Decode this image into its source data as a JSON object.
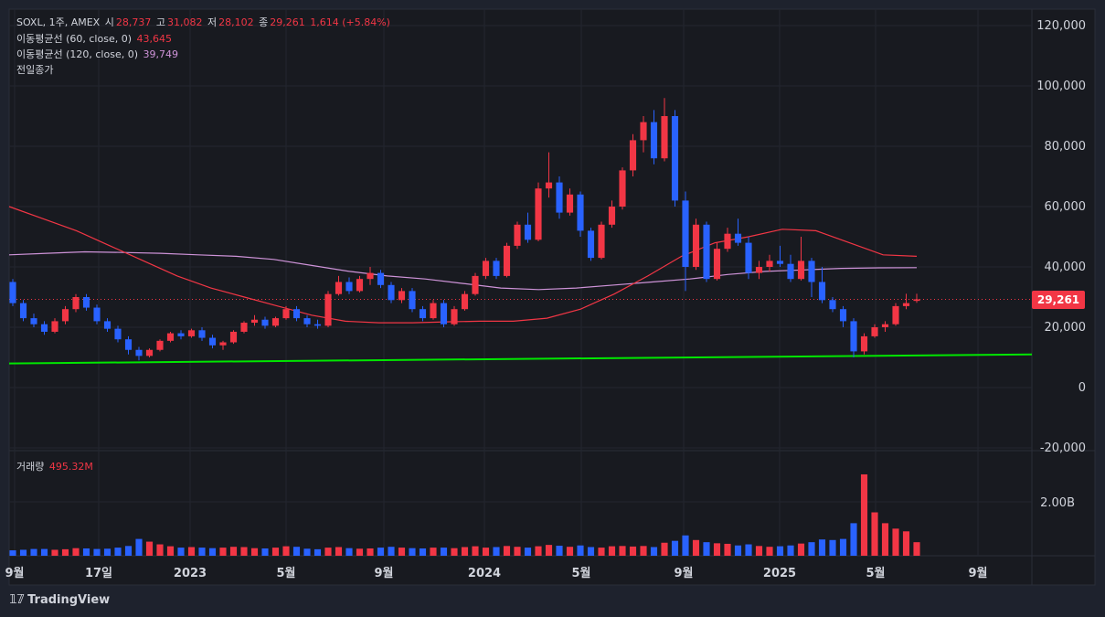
{
  "header": {
    "symbol": "SOXL, 1주, AMEX",
    "open_label": "시",
    "open": "28,737",
    "high_label": "고",
    "high": "31,082",
    "low_label": "저",
    "low": "28,102",
    "close_label": "종",
    "close": "29,261",
    "change": "1,614 (+5.84%)",
    "ma60_label": "이동평균선 (60, close, 0)",
    "ma60_value": "43,645",
    "ma120_label": "이동평균선 (120, close, 0)",
    "ma120_value": "39,749",
    "prev_close_label": "전일종가"
  },
  "volume_panel": {
    "label": "거래량",
    "value": "495.32M"
  },
  "price_badge": "29,261",
  "brand": "TradingView",
  "colors": {
    "up": "#f23645",
    "down": "#2962ff",
    "ma60": "#f23645",
    "ma120": "#ce93d8",
    "trendline": "#00e600",
    "background": "#1e222d"
  },
  "chart_data": {
    "type": "candlestick",
    "price_axis": {
      "ticks": [
        "120,000",
        "100,000",
        "80,000",
        "60,000",
        "40,000",
        "20,000",
        "0",
        "-20,000"
      ],
      "range": [
        -20000,
        120000
      ]
    },
    "volume_axis": {
      "ticks": [
        "2.00B"
      ]
    },
    "time_axis": {
      "ticks": [
        "9월",
        "17일",
        "2023",
        "5월",
        "9월",
        "2024",
        "5월",
        "9월",
        "2025",
        "5월",
        "9월"
      ]
    },
    "candles": [
      [
        35000,
        36000,
        27000,
        28000
      ],
      [
        28000,
        29000,
        22000,
        23000
      ],
      [
        23000,
        24500,
        20000,
        21000
      ],
      [
        21000,
        22000,
        17500,
        18500
      ],
      [
        18500,
        23000,
        18000,
        22000
      ],
      [
        22000,
        27000,
        21000,
        26000
      ],
      [
        26000,
        31000,
        25000,
        30000
      ],
      [
        30000,
        31000,
        25500,
        26500
      ],
      [
        26500,
        27500,
        21000,
        22000
      ],
      [
        22000,
        23000,
        18500,
        19500
      ],
      [
        19500,
        20500,
        15000,
        16000
      ],
      [
        16000,
        17000,
        11000,
        12500
      ],
      [
        12500,
        13500,
        9000,
        10500
      ],
      [
        10500,
        13000,
        10000,
        12500
      ],
      [
        12500,
        16000,
        12000,
        15500
      ],
      [
        15500,
        18500,
        15000,
        18000
      ],
      [
        18000,
        19000,
        16000,
        17000
      ],
      [
        17000,
        19500,
        16500,
        19000
      ],
      [
        19000,
        20000,
        15500,
        16500
      ],
      [
        16500,
        17500,
        13000,
        14000
      ],
      [
        14000,
        15500,
        12500,
        15000
      ],
      [
        15000,
        19000,
        14500,
        18500
      ],
      [
        18500,
        22000,
        18000,
        21500
      ],
      [
        21500,
        24000,
        20500,
        22500
      ],
      [
        22500,
        23500,
        19500,
        20500
      ],
      [
        20500,
        23500,
        20000,
        23000
      ],
      [
        23000,
        27000,
        22500,
        26000
      ],
      [
        26000,
        27000,
        22000,
        23000
      ],
      [
        23000,
        24000,
        20000,
        21000
      ],
      [
        21000,
        22500,
        19500,
        20500
      ],
      [
        20500,
        32000,
        20000,
        31000
      ],
      [
        31000,
        37000,
        30500,
        35000
      ],
      [
        35000,
        36500,
        31000,
        32000
      ],
      [
        32000,
        37000,
        31500,
        36000
      ],
      [
        36000,
        40000,
        34000,
        38000
      ],
      [
        38000,
        39000,
        33000,
        34000
      ],
      [
        34000,
        35000,
        28000,
        29000
      ],
      [
        29000,
        33000,
        28000,
        32000
      ],
      [
        32000,
        33000,
        25000,
        26000
      ],
      [
        26000,
        27000,
        22000,
        23000
      ],
      [
        23000,
        29000,
        22500,
        28000
      ],
      [
        28000,
        29000,
        20000,
        21000
      ],
      [
        21000,
        27000,
        20500,
        26000
      ],
      [
        26000,
        32000,
        25500,
        31000
      ],
      [
        31000,
        38000,
        30500,
        37000
      ],
      [
        37000,
        43000,
        36000,
        42000
      ],
      [
        42000,
        43000,
        36000,
        37000
      ],
      [
        37000,
        48000,
        36500,
        47000
      ],
      [
        47000,
        55000,
        46000,
        54000
      ],
      [
        54000,
        58000,
        48000,
        49000
      ],
      [
        49000,
        68000,
        48500,
        66000
      ],
      [
        66000,
        78000,
        63000,
        68000
      ],
      [
        68000,
        70000,
        56000,
        58000
      ],
      [
        58000,
        66000,
        57000,
        64000
      ],
      [
        64000,
        65000,
        50000,
        52000
      ],
      [
        52000,
        53000,
        42000,
        43000
      ],
      [
        43000,
        55000,
        42500,
        54000
      ],
      [
        54000,
        62000,
        53000,
        60000
      ],
      [
        60000,
        73000,
        59000,
        72000
      ],
      [
        72000,
        84000,
        70000,
        82000
      ],
      [
        82000,
        90000,
        78000,
        88000
      ],
      [
        88000,
        92000,
        74000,
        76000
      ],
      [
        76000,
        96000,
        75000,
        90000
      ],
      [
        90000,
        92000,
        60000,
        62000
      ],
      [
        62000,
        65000,
        32000,
        40000
      ],
      [
        40000,
        56000,
        39000,
        54000
      ],
      [
        54000,
        55000,
        35000,
        36000
      ],
      [
        36000,
        48000,
        35500,
        46000
      ],
      [
        46000,
        53000,
        45000,
        51000
      ],
      [
        51000,
        56000,
        47000,
        48000
      ],
      [
        48000,
        50000,
        36000,
        38000
      ],
      [
        38000,
        42000,
        36000,
        40000
      ],
      [
        40000,
        44000,
        38500,
        42000
      ],
      [
        42000,
        47000,
        40000,
        41000
      ],
      [
        41000,
        44000,
        35000,
        36000
      ],
      [
        36000,
        50000,
        35500,
        42000
      ],
      [
        42000,
        43000,
        30000,
        35000
      ],
      [
        35000,
        40000,
        28000,
        29000
      ],
      [
        29000,
        30000,
        25000,
        26000
      ],
      [
        26000,
        27000,
        20000,
        22000
      ],
      [
        22000,
        23000,
        10000,
        12000
      ],
      [
        12000,
        18000,
        11000,
        17000
      ],
      [
        17000,
        21000,
        16500,
        20000
      ],
      [
        20000,
        22000,
        18500,
        21000
      ],
      [
        21000,
        28000,
        20500,
        27000
      ],
      [
        27000,
        31082,
        26000,
        28000
      ],
      [
        28737,
        31082,
        28102,
        29261
      ]
    ],
    "volumes": [
      0.2,
      0.22,
      0.25,
      0.25,
      0.22,
      0.24,
      0.28,
      0.27,
      0.25,
      0.26,
      0.3,
      0.36,
      0.62,
      0.52,
      0.42,
      0.35,
      0.3,
      0.32,
      0.3,
      0.28,
      0.3,
      0.33,
      0.32,
      0.28,
      0.27,
      0.3,
      0.35,
      0.33,
      0.26,
      0.24,
      0.3,
      0.32,
      0.28,
      0.26,
      0.27,
      0.3,
      0.33,
      0.3,
      0.28,
      0.27,
      0.3,
      0.3,
      0.28,
      0.32,
      0.35,
      0.3,
      0.32,
      0.36,
      0.33,
      0.3,
      0.35,
      0.4,
      0.37,
      0.33,
      0.38,
      0.32,
      0.3,
      0.35,
      0.36,
      0.34,
      0.36,
      0.32,
      0.48,
      0.55,
      0.75,
      0.58,
      0.5,
      0.46,
      0.44,
      0.38,
      0.42,
      0.36,
      0.33,
      0.35,
      0.38,
      0.45,
      0.5,
      0.6,
      0.58,
      0.62,
      1.2,
      3.0,
      1.6,
      1.2,
      1.0,
      0.9,
      0.5
    ],
    "ma60": [
      60000,
      56000,
      52000,
      47000,
      42000,
      37000,
      33000,
      30000,
      27000,
      24000,
      22000,
      21500,
      21500,
      21800,
      22000,
      22000,
      23000,
      26000,
      31000,
      37000,
      43500,
      48000,
      50000,
      52500,
      52000,
      48000,
      44000,
      43500
    ],
    "ma120": [
      44000,
      44500,
      45000,
      44800,
      44500,
      44000,
      43500,
      42500,
      40500,
      38500,
      37000,
      36000,
      34500,
      33000,
      32500,
      33000,
      34000,
      35000,
      36000,
      37500,
      38500,
      39000,
      39500,
      39700,
      39749
    ],
    "trendline": {
      "from": 8000,
      "to": 11000
    }
  }
}
